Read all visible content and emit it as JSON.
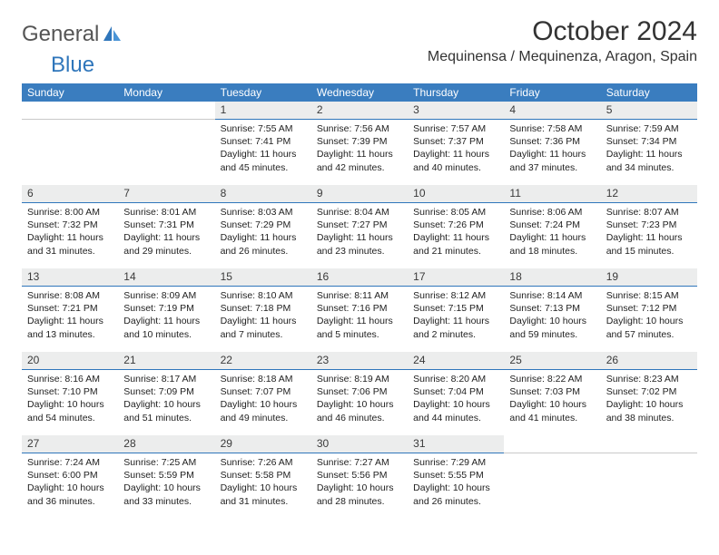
{
  "brand": {
    "general": "General",
    "blue": "Blue"
  },
  "title": "October 2024",
  "location": "Mequinensa / Mequinenza, Aragon, Spain",
  "colors": {
    "header_bg": "#3a7dbf",
    "header_text": "#ffffff",
    "daynum_bg": "#eceded",
    "daynum_border": "#2f76bb",
    "brand_blue": "#2f76bb",
    "brand_gray": "#555555",
    "body_text": "#222222",
    "page_bg": "#ffffff"
  },
  "weekdays": [
    "Sunday",
    "Monday",
    "Tuesday",
    "Wednesday",
    "Thursday",
    "Friday",
    "Saturday"
  ],
  "weeks": [
    [
      null,
      null,
      {
        "n": "1",
        "sr": "7:55 AM",
        "ss": "7:41 PM",
        "dl": "11 hours and 45 minutes."
      },
      {
        "n": "2",
        "sr": "7:56 AM",
        "ss": "7:39 PM",
        "dl": "11 hours and 42 minutes."
      },
      {
        "n": "3",
        "sr": "7:57 AM",
        "ss": "7:37 PM",
        "dl": "11 hours and 40 minutes."
      },
      {
        "n": "4",
        "sr": "7:58 AM",
        "ss": "7:36 PM",
        "dl": "11 hours and 37 minutes."
      },
      {
        "n": "5",
        "sr": "7:59 AM",
        "ss": "7:34 PM",
        "dl": "11 hours and 34 minutes."
      }
    ],
    [
      {
        "n": "6",
        "sr": "8:00 AM",
        "ss": "7:32 PM",
        "dl": "11 hours and 31 minutes."
      },
      {
        "n": "7",
        "sr": "8:01 AM",
        "ss": "7:31 PM",
        "dl": "11 hours and 29 minutes."
      },
      {
        "n": "8",
        "sr": "8:03 AM",
        "ss": "7:29 PM",
        "dl": "11 hours and 26 minutes."
      },
      {
        "n": "9",
        "sr": "8:04 AM",
        "ss": "7:27 PM",
        "dl": "11 hours and 23 minutes."
      },
      {
        "n": "10",
        "sr": "8:05 AM",
        "ss": "7:26 PM",
        "dl": "11 hours and 21 minutes."
      },
      {
        "n": "11",
        "sr": "8:06 AM",
        "ss": "7:24 PM",
        "dl": "11 hours and 18 minutes."
      },
      {
        "n": "12",
        "sr": "8:07 AM",
        "ss": "7:23 PM",
        "dl": "11 hours and 15 minutes."
      }
    ],
    [
      {
        "n": "13",
        "sr": "8:08 AM",
        "ss": "7:21 PM",
        "dl": "11 hours and 13 minutes."
      },
      {
        "n": "14",
        "sr": "8:09 AM",
        "ss": "7:19 PM",
        "dl": "11 hours and 10 minutes."
      },
      {
        "n": "15",
        "sr": "8:10 AM",
        "ss": "7:18 PM",
        "dl": "11 hours and 7 minutes."
      },
      {
        "n": "16",
        "sr": "8:11 AM",
        "ss": "7:16 PM",
        "dl": "11 hours and 5 minutes."
      },
      {
        "n": "17",
        "sr": "8:12 AM",
        "ss": "7:15 PM",
        "dl": "11 hours and 2 minutes."
      },
      {
        "n": "18",
        "sr": "8:14 AM",
        "ss": "7:13 PM",
        "dl": "10 hours and 59 minutes."
      },
      {
        "n": "19",
        "sr": "8:15 AM",
        "ss": "7:12 PM",
        "dl": "10 hours and 57 minutes."
      }
    ],
    [
      {
        "n": "20",
        "sr": "8:16 AM",
        "ss": "7:10 PM",
        "dl": "10 hours and 54 minutes."
      },
      {
        "n": "21",
        "sr": "8:17 AM",
        "ss": "7:09 PM",
        "dl": "10 hours and 51 minutes."
      },
      {
        "n": "22",
        "sr": "8:18 AM",
        "ss": "7:07 PM",
        "dl": "10 hours and 49 minutes."
      },
      {
        "n": "23",
        "sr": "8:19 AM",
        "ss": "7:06 PM",
        "dl": "10 hours and 46 minutes."
      },
      {
        "n": "24",
        "sr": "8:20 AM",
        "ss": "7:04 PM",
        "dl": "10 hours and 44 minutes."
      },
      {
        "n": "25",
        "sr": "8:22 AM",
        "ss": "7:03 PM",
        "dl": "10 hours and 41 minutes."
      },
      {
        "n": "26",
        "sr": "8:23 AM",
        "ss": "7:02 PM",
        "dl": "10 hours and 38 minutes."
      }
    ],
    [
      {
        "n": "27",
        "sr": "7:24 AM",
        "ss": "6:00 PM",
        "dl": "10 hours and 36 minutes."
      },
      {
        "n": "28",
        "sr": "7:25 AM",
        "ss": "5:59 PM",
        "dl": "10 hours and 33 minutes."
      },
      {
        "n": "29",
        "sr": "7:26 AM",
        "ss": "5:58 PM",
        "dl": "10 hours and 31 minutes."
      },
      {
        "n": "30",
        "sr": "7:27 AM",
        "ss": "5:56 PM",
        "dl": "10 hours and 28 minutes."
      },
      {
        "n": "31",
        "sr": "7:29 AM",
        "ss": "5:55 PM",
        "dl": "10 hours and 26 minutes."
      },
      null,
      null
    ]
  ],
  "labels": {
    "sunrise": "Sunrise: ",
    "sunset": "Sunset: ",
    "daylight": "Daylight: "
  }
}
